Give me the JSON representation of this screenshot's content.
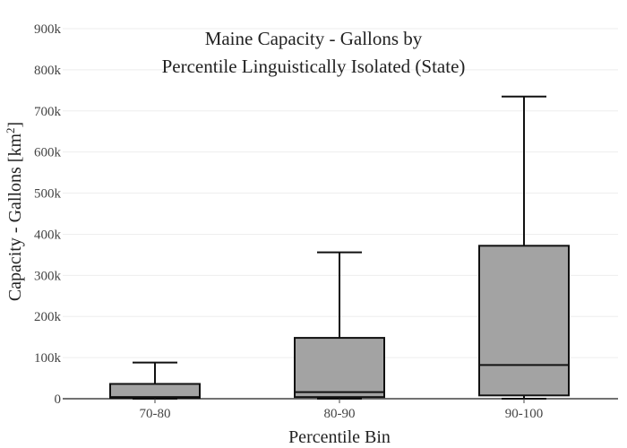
{
  "chart_data": {
    "type": "box",
    "title_lines": [
      "Maine Capacity - Gallons by",
      "Percentile Linguistically Isolated (State)"
    ],
    "xlabel": "Percentile Bin",
    "ylabel_main": "Capacity - Gallons  [km",
    "ylabel_sup": "2",
    "ylabel_end": "]",
    "ylim": [
      0,
      900000
    ],
    "yticks": [
      {
        "value": 0,
        "label": "0"
      },
      {
        "value": 100000,
        "label": "100k"
      },
      {
        "value": 200000,
        "label": "200k"
      },
      {
        "value": 300000,
        "label": "300k"
      },
      {
        "value": 400000,
        "label": "400k"
      },
      {
        "value": 500000,
        "label": "500k"
      },
      {
        "value": 600000,
        "label": "600k"
      },
      {
        "value": 700000,
        "label": "700k"
      },
      {
        "value": 800000,
        "label": "800k"
      },
      {
        "value": 900000,
        "label": "900k"
      }
    ],
    "categories": [
      "70-80",
      "80-90",
      "90-100"
    ],
    "boxes": [
      {
        "category": "70-80",
        "min": 0,
        "q1": 2000,
        "median": 4000,
        "q3": 36000,
        "max": 88000
      },
      {
        "category": "80-90",
        "min": 0,
        "q1": 4000,
        "median": 16000,
        "q3": 148000,
        "max": 356000
      },
      {
        "category": "90-100",
        "min": 0,
        "q1": 8000,
        "median": 82000,
        "q3": 372000,
        "max": 735000
      }
    ],
    "grid": true,
    "colors": {
      "box_fill": "#a3a3a3",
      "box_stroke": "#111111",
      "grid": "#eeeeee",
      "axis": "#444444"
    }
  }
}
